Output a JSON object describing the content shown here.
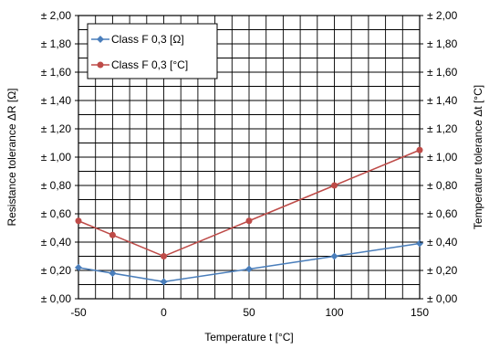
{
  "chart_data": {
    "type": "line",
    "x_label": "Temperature t [°C]",
    "y_left_label": "Resistance tolerance ΔR [Ω]",
    "y_right_label": "Temperature tolerance Δt [°C]",
    "x_ticks": [
      -50,
      0,
      50,
      100,
      150
    ],
    "x_tick_labels": [
      "-50",
      "0",
      "50",
      "100",
      "150"
    ],
    "x_range": [
      -50,
      150
    ],
    "y_range": [
      0,
      2
    ],
    "y_tick_labels": [
      "± 0,00",
      "± 0,20",
      "± 0,40",
      "± 0,60",
      "± 0,80",
      "± 1,00",
      "± 1,20",
      "± 1,40",
      "± 1,60",
      "± 1,80",
      "± 2,00"
    ],
    "x_grid_step": 10,
    "y_grid_step": 0.1,
    "grid": true,
    "legend_position": "top-left",
    "series": [
      {
        "name": "Class F 0,3 [Ω]",
        "axis": "left",
        "color": "#4a7ebb",
        "marker": "diamond",
        "x": [
          -50,
          -30,
          0,
          50,
          100,
          150
        ],
        "y": [
          0.22,
          0.18,
          0.12,
          0.21,
          0.3,
          0.39
        ]
      },
      {
        "name": "Class F 0,3 [°C]",
        "axis": "right",
        "color": "#be4b48",
        "marker": "circle",
        "x": [
          -50,
          -30,
          0,
          50,
          100,
          150
        ],
        "y": [
          0.55,
          0.45,
          0.3,
          0.55,
          0.8,
          1.05
        ]
      }
    ]
  }
}
